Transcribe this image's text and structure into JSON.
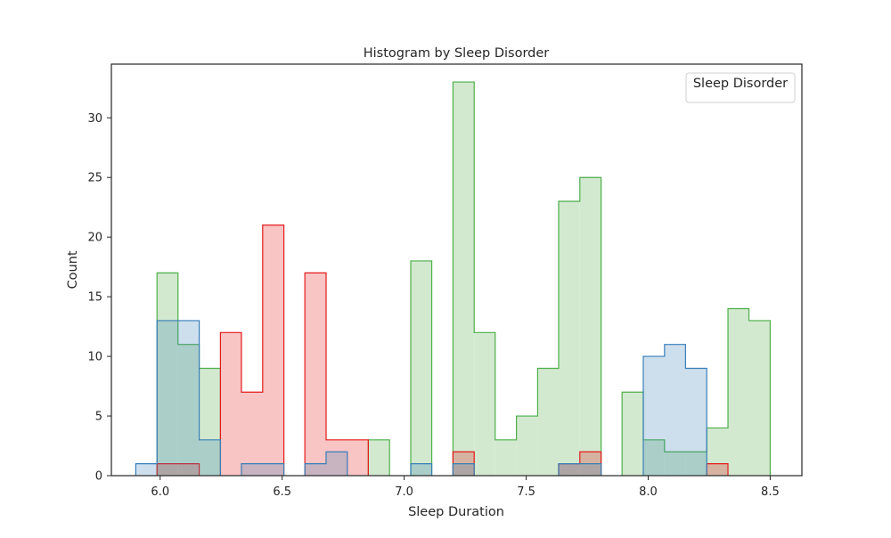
{
  "chart_data": {
    "type": "histogram",
    "title": "Histogram by Sleep Disorder",
    "xlabel": "Sleep Duration",
    "ylabel": "Count",
    "xlim": [
      5.8,
      8.63
    ],
    "ylim": [
      0,
      34.5
    ],
    "x_ticks": [
      6.0,
      6.5,
      7.0,
      7.5,
      8.0,
      8.5
    ],
    "x_tick_labels": [
      "6.0",
      "6.5",
      "7.0",
      "7.5",
      "8.0",
      "8.5"
    ],
    "y_ticks": [
      0,
      5,
      10,
      15,
      20,
      25,
      30
    ],
    "y_tick_labels": [
      "0",
      "5",
      "10",
      "15",
      "20",
      "25",
      "30"
    ],
    "grid": false,
    "legend": {
      "title": "Sleep Disorder",
      "placement": "top-right",
      "entries": []
    },
    "bin_edges": [
      5.9,
      5.987,
      6.073,
      6.16,
      6.247,
      6.333,
      6.42,
      6.507,
      6.593,
      6.68,
      6.767,
      6.853,
      6.94,
      7.027,
      7.113,
      7.2,
      7.287,
      7.373,
      7.46,
      7.547,
      7.633,
      7.72,
      7.807,
      7.893,
      7.98,
      8.067,
      8.153,
      8.24,
      8.327,
      8.413,
      8.5
    ],
    "series": [
      {
        "color": "#4daf4a",
        "fill": "#d2e9cf",
        "counts": [
          0,
          17,
          11,
          9,
          0,
          0,
          0,
          0,
          0,
          0,
          0,
          3,
          0,
          18,
          0,
          33,
          12,
          3,
          5,
          9,
          23,
          25,
          0,
          7,
          3,
          2,
          2,
          4,
          14,
          13
        ]
      },
      {
        "color": "#e41a1c",
        "fill": "rgba(228,26,28,0.26)",
        "counts": [
          0,
          1,
          1,
          0,
          12,
          7,
          21,
          0,
          17,
          3,
          3,
          0,
          0,
          0,
          0,
          2,
          0,
          0,
          0,
          0,
          1,
          2,
          0,
          0,
          0,
          0,
          0,
          1,
          0,
          0
        ]
      },
      {
        "color": "#377eb8",
        "fill": "rgba(55,126,184,0.25)",
        "counts": [
          1,
          13,
          13,
          3,
          0,
          1,
          1,
          0,
          1,
          2,
          0,
          0,
          0,
          1,
          0,
          1,
          0,
          0,
          0,
          0,
          1,
          1,
          0,
          0,
          10,
          11,
          9,
          0,
          0,
          0
        ]
      }
    ]
  }
}
